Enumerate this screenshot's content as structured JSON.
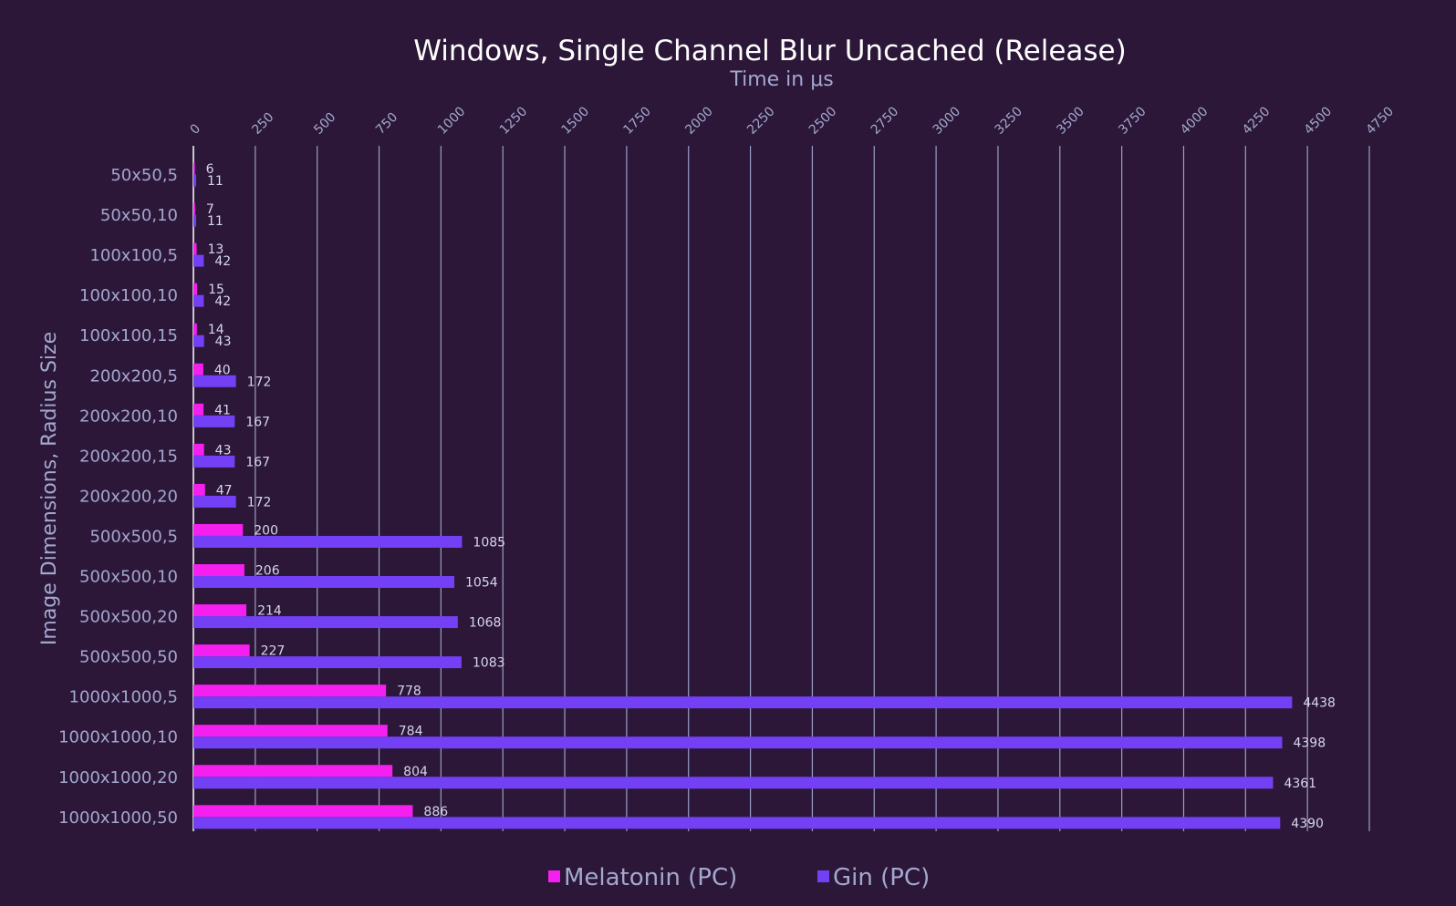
{
  "chart_data": {
    "type": "bar",
    "orientation": "horizontal",
    "title": "Windows, Single Channel Blur Uncached (Release)",
    "xlabel": "Time in μs",
    "ylabel": "Image Dimensions, Radius Size",
    "xlim": [
      0,
      4750
    ],
    "x_ticks": [
      0,
      250,
      500,
      750,
      1000,
      1250,
      1500,
      1750,
      2000,
      2250,
      2500,
      2750,
      3000,
      3250,
      3500,
      3750,
      4000,
      4250,
      4500,
      4750
    ],
    "grid": true,
    "legend_position": "bottom",
    "categories": [
      "50x50,5",
      "50x50,10",
      "100x100,5",
      "100x100,10",
      "100x100,15",
      "200x200,5",
      "200x200,10",
      "200x200,15",
      "200x200,20",
      "500x500,5",
      "500x500,10",
      "500x500,20",
      "500x500,50",
      "1000x1000,5",
      "1000x1000,10",
      "1000x1000,20",
      "1000x1000,50"
    ],
    "series": [
      {
        "name": "Melatonin (PC)",
        "color": "#f51ff0",
        "values": [
          6,
          7,
          13,
          15,
          14,
          40,
          41,
          43,
          47,
          200,
          206,
          214,
          227,
          778,
          784,
          804,
          886
        ]
      },
      {
        "name": "Gin (PC)",
        "color": "#7340f5",
        "values": [
          11,
          11,
          42,
          42,
          43,
          172,
          167,
          167,
          172,
          1085,
          1054,
          1068,
          1083,
          4438,
          4398,
          4361,
          4390
        ]
      }
    ]
  }
}
